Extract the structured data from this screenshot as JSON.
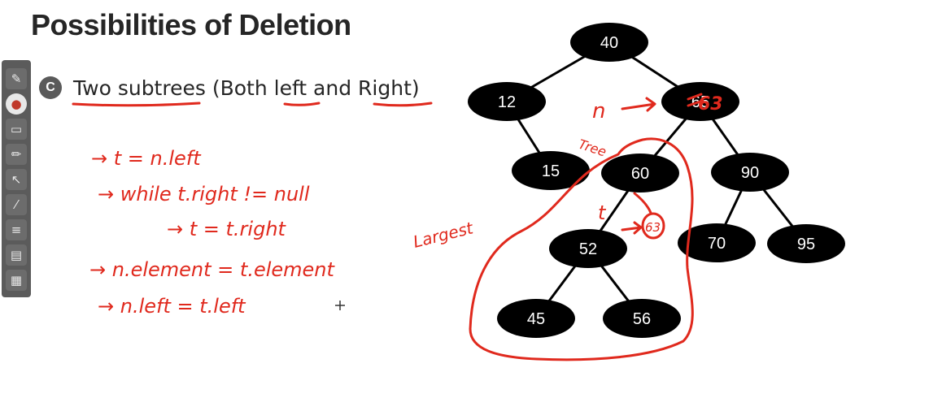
{
  "title": "Possibilities of Deletion",
  "section": {
    "bullet": "C",
    "text": "Two subtrees (Both left and Right)"
  },
  "toolbar": {
    "tools": [
      "pen-icon",
      "pointer-pen-icon",
      "eraser-icon",
      "highlighter-icon",
      "arrow-pointer-icon",
      "laser-icon",
      "lines-icon",
      "screen-icon",
      "slide-icon"
    ],
    "glyphs": [
      "✎",
      "●",
      "▭",
      "✏",
      "↖",
      "⁄",
      "≡",
      "▤",
      "▦"
    ],
    "active_index": 1
  },
  "tree": {
    "nodes": [
      {
        "id": "n40",
        "label": "40"
      },
      {
        "id": "n12",
        "label": "12"
      },
      {
        "id": "n65",
        "label": "65"
      },
      {
        "id": "n15",
        "label": "15"
      },
      {
        "id": "n60",
        "label": "60"
      },
      {
        "id": "n90",
        "label": "90"
      },
      {
        "id": "n52",
        "label": "52"
      },
      {
        "id": "n70",
        "label": "70"
      },
      {
        "id": "n95",
        "label": "95"
      },
      {
        "id": "n45",
        "label": "45"
      },
      {
        "id": "n56",
        "label": "56"
      }
    ],
    "edges": [
      [
        "n40",
        "n12"
      ],
      [
        "n40",
        "n65"
      ],
      [
        "n12",
        "n15"
      ],
      [
        "n65",
        "n60"
      ],
      [
        "n65",
        "n90"
      ],
      [
        "n60",
        "n52"
      ],
      [
        "n90",
        "n70"
      ],
      [
        "n90",
        "n95"
      ],
      [
        "n52",
        "n45"
      ],
      [
        "n52",
        "n56"
      ]
    ]
  },
  "annotations": {
    "code_lines": [
      "→ t = n.left",
      "→ while t.right != null",
      "→ t = t.right",
      "→ n.element = t.element",
      "→ n.left = t.left"
    ],
    "replacement_value": "63",
    "n_marker": "n",
    "t_marker": "t",
    "leaf_value": "63",
    "largest_label": "Largest",
    "tree_label": "Tree"
  },
  "colors": {
    "ink": "#e0291d",
    "node_fill": "#000000",
    "title": "#262626"
  }
}
